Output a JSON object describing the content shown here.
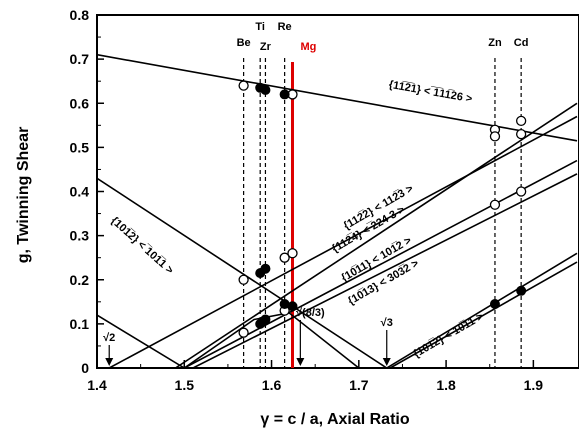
{
  "chart_data": {
    "type": "line",
    "xlabel": "γ = c / a, Axial Ratio",
    "ylabel": "g, Twinning Shear",
    "xlim": [
      1.4,
      1.95
    ],
    "ylim": [
      0,
      0.8
    ],
    "x_ticks": [
      "1.4",
      "1.5",
      "1.6",
      "1.7",
      "1.8",
      "1.9"
    ],
    "y_ticks": [
      "0",
      "0.1",
      "0.2",
      "0.3",
      "0.4",
      "0.5",
      "0.6",
      "0.7",
      "0.8"
    ],
    "grid": false,
    "line_color": "#000000",
    "highlight_color": "#dd0000",
    "elements": [
      {
        "name": "Be",
        "c_a": 1.568
      },
      {
        "name": "Ti",
        "c_a": 1.587
      },
      {
        "name": "Zr",
        "c_a": 1.593
      },
      {
        "name": "Re",
        "c_a": 1.615
      },
      {
        "name": "Mg",
        "c_a": 1.624,
        "highlight": true
      },
      {
        "name": "Zn",
        "c_a": 1.856
      },
      {
        "name": "Cd",
        "c_a": 1.886
      }
    ],
    "series": [
      {
        "name": "{11̄2̄1}<1̄1̄26>",
        "points": [
          [
            1.4,
            0.71
          ],
          [
            1.95,
            0.515
          ]
        ]
      },
      {
        "name": "{101̄2}<1̄011>",
        "points": [
          [
            1.4,
            0.43
          ],
          [
            1.732,
            0.0
          ],
          [
            1.95,
            0.26
          ]
        ]
      },
      {
        "name": "{112̄2}<112̄3̄>",
        "points": [
          [
            1.49,
            0.0
          ],
          [
            1.95,
            0.6
          ]
        ]
      },
      {
        "name": "{112̄4}<2̄243>",
        "points": [
          [
            1.414,
            0.0
          ],
          [
            1.95,
            0.57
          ]
        ]
      },
      {
        "name": "{101̄1}<101̄2̄>",
        "points": [
          [
            1.5,
            0.0
          ],
          [
            1.95,
            0.47
          ]
        ]
      },
      {
        "name": "{101̄3}<303̄2̄>",
        "points": [
          [
            1.51,
            0.0
          ],
          [
            1.95,
            0.44
          ]
        ]
      },
      {
        "name": "{101̄2}<101̄1̄>",
        "points": [
          [
            1.4,
            0.12
          ],
          [
            1.5,
            0.0
          ],
          [
            1.58,
            0.11
          ],
          [
            1.62,
            0.125
          ],
          [
            1.7,
            0.0
          ]
        ]
      },
      {
        "name": "lower {101̄2}",
        "points": [
          [
            1.736,
            0.0
          ],
          [
            1.95,
            0.24
          ]
        ]
      }
    ],
    "points_open": [
      [
        1.568,
        0.64
      ],
      [
        1.624,
        0.62
      ],
      [
        1.568,
        0.2
      ],
      [
        1.615,
        0.25
      ],
      [
        1.624,
        0.26
      ],
      [
        1.568,
        0.08
      ],
      [
        1.615,
        0.13
      ],
      [
        1.856,
        0.54
      ],
      [
        1.886,
        0.56
      ],
      [
        1.856,
        0.525
      ],
      [
        1.886,
        0.53
      ],
      [
        1.856,
        0.37
      ],
      [
        1.886,
        0.4
      ]
    ],
    "points_filled": [
      [
        1.587,
        0.635
      ],
      [
        1.593,
        0.63
      ],
      [
        1.615,
        0.62
      ],
      [
        1.587,
        0.215
      ],
      [
        1.593,
        0.225
      ],
      [
        1.587,
        0.1
      ],
      [
        1.593,
        0.11
      ],
      [
        1.615,
        0.145
      ],
      [
        1.624,
        0.14
      ],
      [
        1.856,
        0.145
      ],
      [
        1.886,
        0.175
      ]
    ],
    "annotations": [
      {
        "id": "sqrt2",
        "text": "√2",
        "x": 1.414
      },
      {
        "id": "sqrt8_3",
        "text": "√(8/3)",
        "x": 1.633
      },
      {
        "id": "sqrt3",
        "text": "√3",
        "x": 1.732
      }
    ],
    "curve_labels": [
      {
        "text": "{11̅2̅1} < ̅1̅11̅26 >"
      },
      {
        "text": "{101̅2} < ̅101̅1 >"
      },
      {
        "text": "{112̅2} < 112̅3 >"
      },
      {
        "text": "{112̅4} < ̅224 3 >"
      },
      {
        "text": "{10̅11} < 101̅2 >"
      },
      {
        "text": "{10̅13} < 303̅2 >"
      },
      {
        "text": "{101̅2} < 10̅11 >"
      }
    ]
  }
}
